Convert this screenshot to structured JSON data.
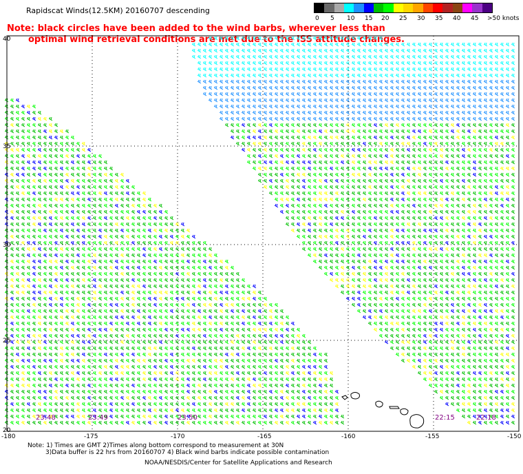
{
  "title": "Rapidscat Winds(12.5KM) 20160707 descending",
  "note": {
    "line1": "Note: black circles have been added to the wind barbs, wherever less than",
    "line2": "optimal wind retrieval conditions are met due to the ISS attitude changes."
  },
  "legend": {
    "unit_label": ">50 knots",
    "labels": [
      "0",
      "5",
      "10",
      "15",
      "20",
      "25",
      "30",
      "35",
      "40",
      "45"
    ],
    "colors": [
      "#000000",
      "#696969",
      "#a9a9a9",
      "#00ffff",
      "#1e90ff",
      "#0000ff",
      "#00c000",
      "#00ff00",
      "#ffff00",
      "#ffd700",
      "#ffa500",
      "#ff4500",
      "#ff0000",
      "#b22222",
      "#8b4513",
      "#ff00ff",
      "#9932cc",
      "#4b0082"
    ]
  },
  "axes": {
    "lon_labels": [
      "-180",
      "-175",
      "-170",
      "-165",
      "-160",
      "-155",
      "-150"
    ],
    "lat_labels": [
      "40",
      "35",
      "30",
      "25",
      "20"
    ]
  },
  "times": [
    {
      "label": "23:48"
    },
    {
      "label": "23:49"
    },
    {
      "label": "23:50"
    },
    {
      "label": "22:15"
    },
    {
      "label": "22:18"
    }
  ],
  "footer": {
    "line1": "Note: 1) Times are GMT 2)Times along bottom correspond to measurement at 30N",
    "line2": "3)Data buffer is 22 hrs from 20160707 4) Black wind barbs indicate possible contamination",
    "line3": "NOAA/NESDIS/Center for Satellite Applications and Research"
  }
}
